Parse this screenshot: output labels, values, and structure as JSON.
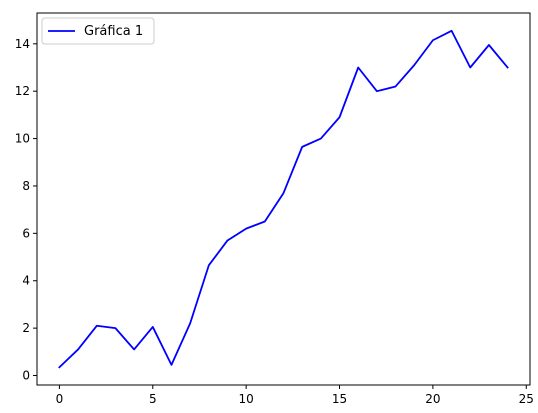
{
  "chart_data": {
    "type": "line",
    "title": "",
    "xlabel": "",
    "ylabel": "",
    "xlim": [
      -1.2,
      25.2
    ],
    "ylim": [
      -0.4,
      15.3
    ],
    "xticks": [
      0,
      5,
      10,
      15,
      20,
      25
    ],
    "yticks": [
      0,
      2,
      4,
      6,
      8,
      10,
      12,
      14
    ],
    "grid": false,
    "legend_position": "top-left",
    "series": [
      {
        "name": "Gráfica 1",
        "color": "#0000ff",
        "x": [
          0,
          1,
          2,
          3,
          4,
          5,
          6,
          7,
          8,
          9,
          10,
          11,
          12,
          13,
          14,
          15,
          16,
          17,
          18,
          19,
          20,
          21,
          22,
          23,
          24
        ],
        "y": [
          0.35,
          1.1,
          2.1,
          2.0,
          1.1,
          2.05,
          0.45,
          2.2,
          4.65,
          5.7,
          6.2,
          6.5,
          7.7,
          9.65,
          10.0,
          10.9,
          13.0,
          12.0,
          12.2,
          13.1,
          14.15,
          14.55,
          13.0,
          13.95,
          13.0
        ]
      }
    ]
  }
}
